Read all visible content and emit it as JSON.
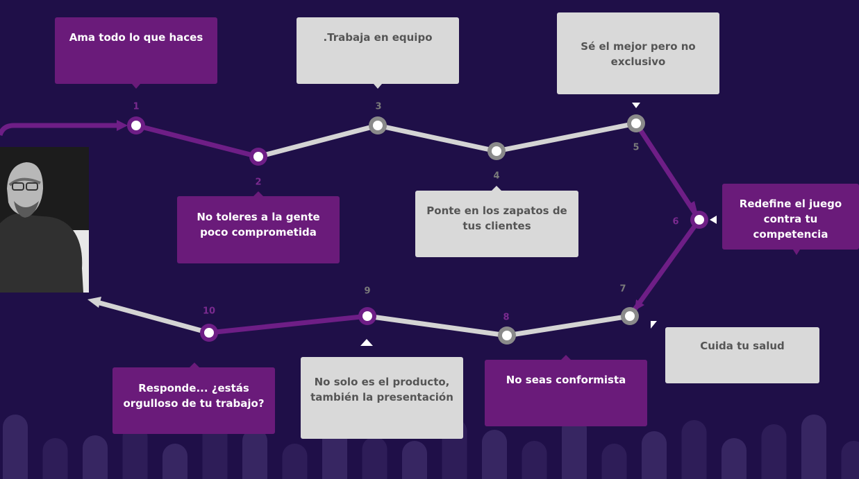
{
  "steps": [
    {
      "num": "1",
      "text": "Ama todo lo que haces"
    },
    {
      "num": "2",
      "text": "No toleres a la gente poco comprometida"
    },
    {
      "num": "3",
      "text": ".Trabaja en equipo"
    },
    {
      "num": "4",
      "text": "Ponte en los zapatos de tus clientes"
    },
    {
      "num": "5",
      "text": "Sé el mejor pero no exclusivo"
    },
    {
      "num": "6",
      "text": "Redefine el juego contra tu competencia"
    },
    {
      "num": "7",
      "text": "Cuida tu salud"
    },
    {
      "num": "8",
      "text": "No seas conformista"
    },
    {
      "num": "9",
      "text": "No solo es el producto, también la presentación"
    },
    {
      "num": "10",
      "text": "Responde... ¿estás orgulloso de tu trabajo?"
    }
  ],
  "colors": {
    "background": "#1f0f48",
    "purple": "#6a1b7a",
    "purple_line": "#6e1e86",
    "gray_box": "#d9d9d9",
    "gray_line": "#d4d4d4",
    "gray_node": "#8a8a8a"
  },
  "portrait": {
    "icon": "person-portrait-icon"
  }
}
